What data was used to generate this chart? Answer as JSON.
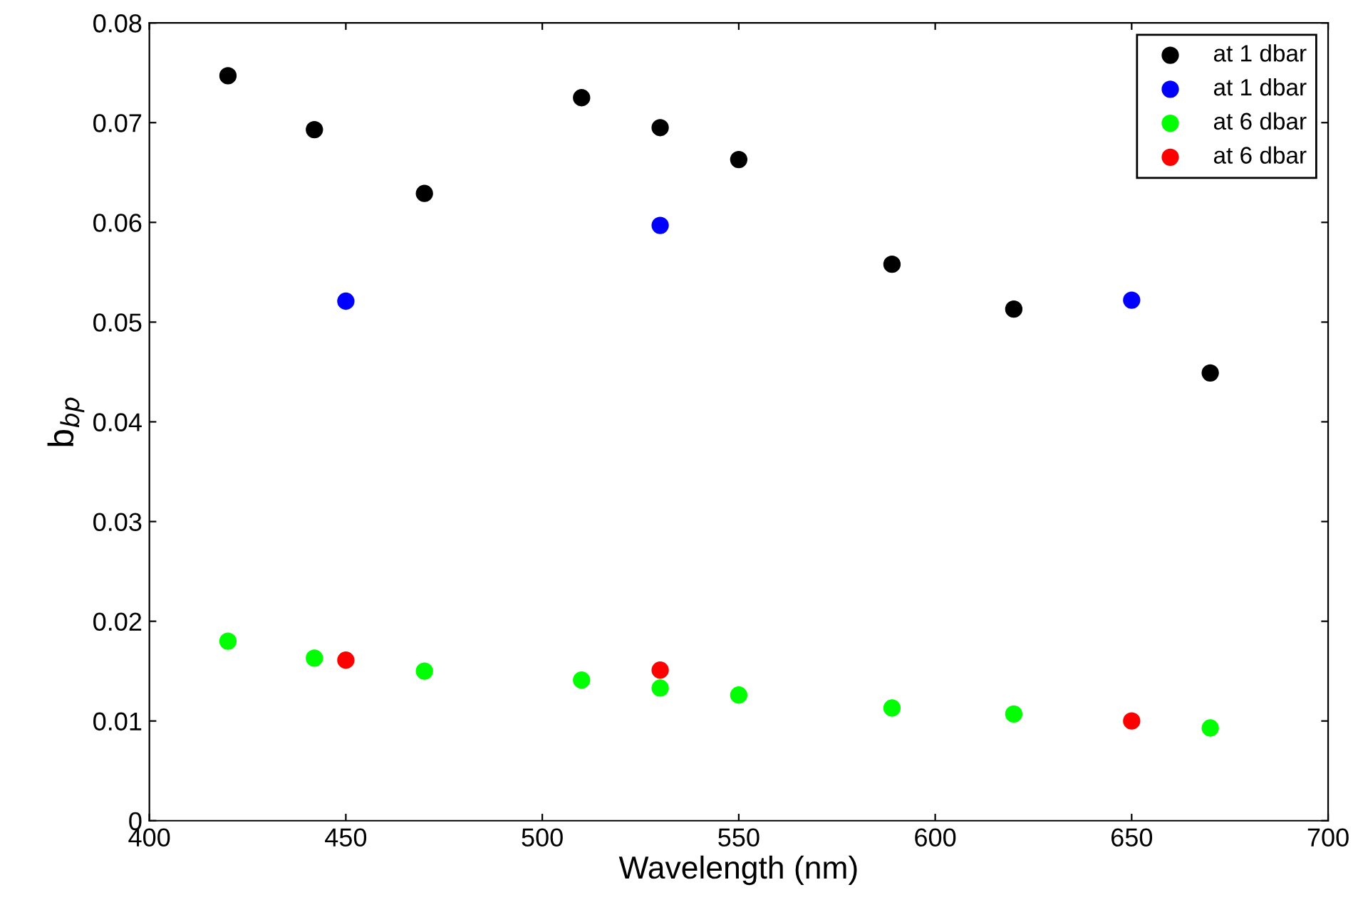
{
  "chart_data": {
    "type": "scatter",
    "xlabel": "Wavelength (nm)",
    "ylabel": "b$_{bp}$",
    "xlim": [
      400,
      700
    ],
    "xticks": [
      400,
      450,
      500,
      550,
      600,
      650,
      700
    ],
    "ylim": [
      0,
      0.08
    ],
    "yticks": [
      0,
      0.01,
      0.02,
      0.03,
      0.04,
      0.05,
      0.06,
      0.07,
      0.08
    ],
    "grid": false,
    "legend": "top right",
    "marker": "circle",
    "series": [
      {
        "name": "at 1 dbar",
        "color": "#000000",
        "x": [
          420,
          442,
          470,
          510,
          530,
          550,
          589,
          620,
          670
        ],
        "values": [
          0.0747,
          0.0693,
          0.0629,
          0.0725,
          0.0695,
          0.0663,
          0.0558,
          0.0513,
          0.0449
        ]
      },
      {
        "name": "at 1 dbar",
        "color": "#0000ff",
        "x": [
          450,
          530,
          650
        ],
        "values": [
          0.0521,
          0.0597,
          0.0522
        ]
      },
      {
        "name": "at 6 dbar",
        "color": "#00ff00",
        "x": [
          420,
          442,
          470,
          510,
          530,
          550,
          589,
          620,
          670
        ],
        "values": [
          0.018,
          0.0163,
          0.015,
          0.0141,
          0.0133,
          0.0126,
          0.0113,
          0.0107,
          0.0093
        ]
      },
      {
        "name": "at 6 dbar",
        "color": "#ff0000",
        "x": [
          450,
          530,
          650
        ],
        "values": [
          0.0161,
          0.0151,
          0.01
        ]
      }
    ]
  }
}
